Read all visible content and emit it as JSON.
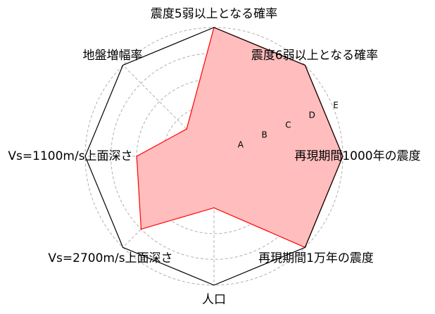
{
  "chart_data": {
    "type": "radar",
    "axes": [
      "震度5弱以上となる確率",
      "震度6弱以上となる確率",
      "再現期間1000年の震度",
      "再現期間1万年の震度",
      "人口",
      "Vs=2700m/s上面深さ",
      "Vs=1100m/s上面深さ",
      "地盤増幅率"
    ],
    "grades": [
      "A",
      "B",
      "C",
      "D",
      "E"
    ],
    "rmax": 5,
    "values": [
      5,
      5,
      5,
      5,
      2,
      4,
      3,
      1.5
    ],
    "grid": true,
    "colors": {
      "fill": "#ffbdbd",
      "line": "#ff0000",
      "frame": "#000000",
      "grid": "#b0b0b0"
    }
  }
}
